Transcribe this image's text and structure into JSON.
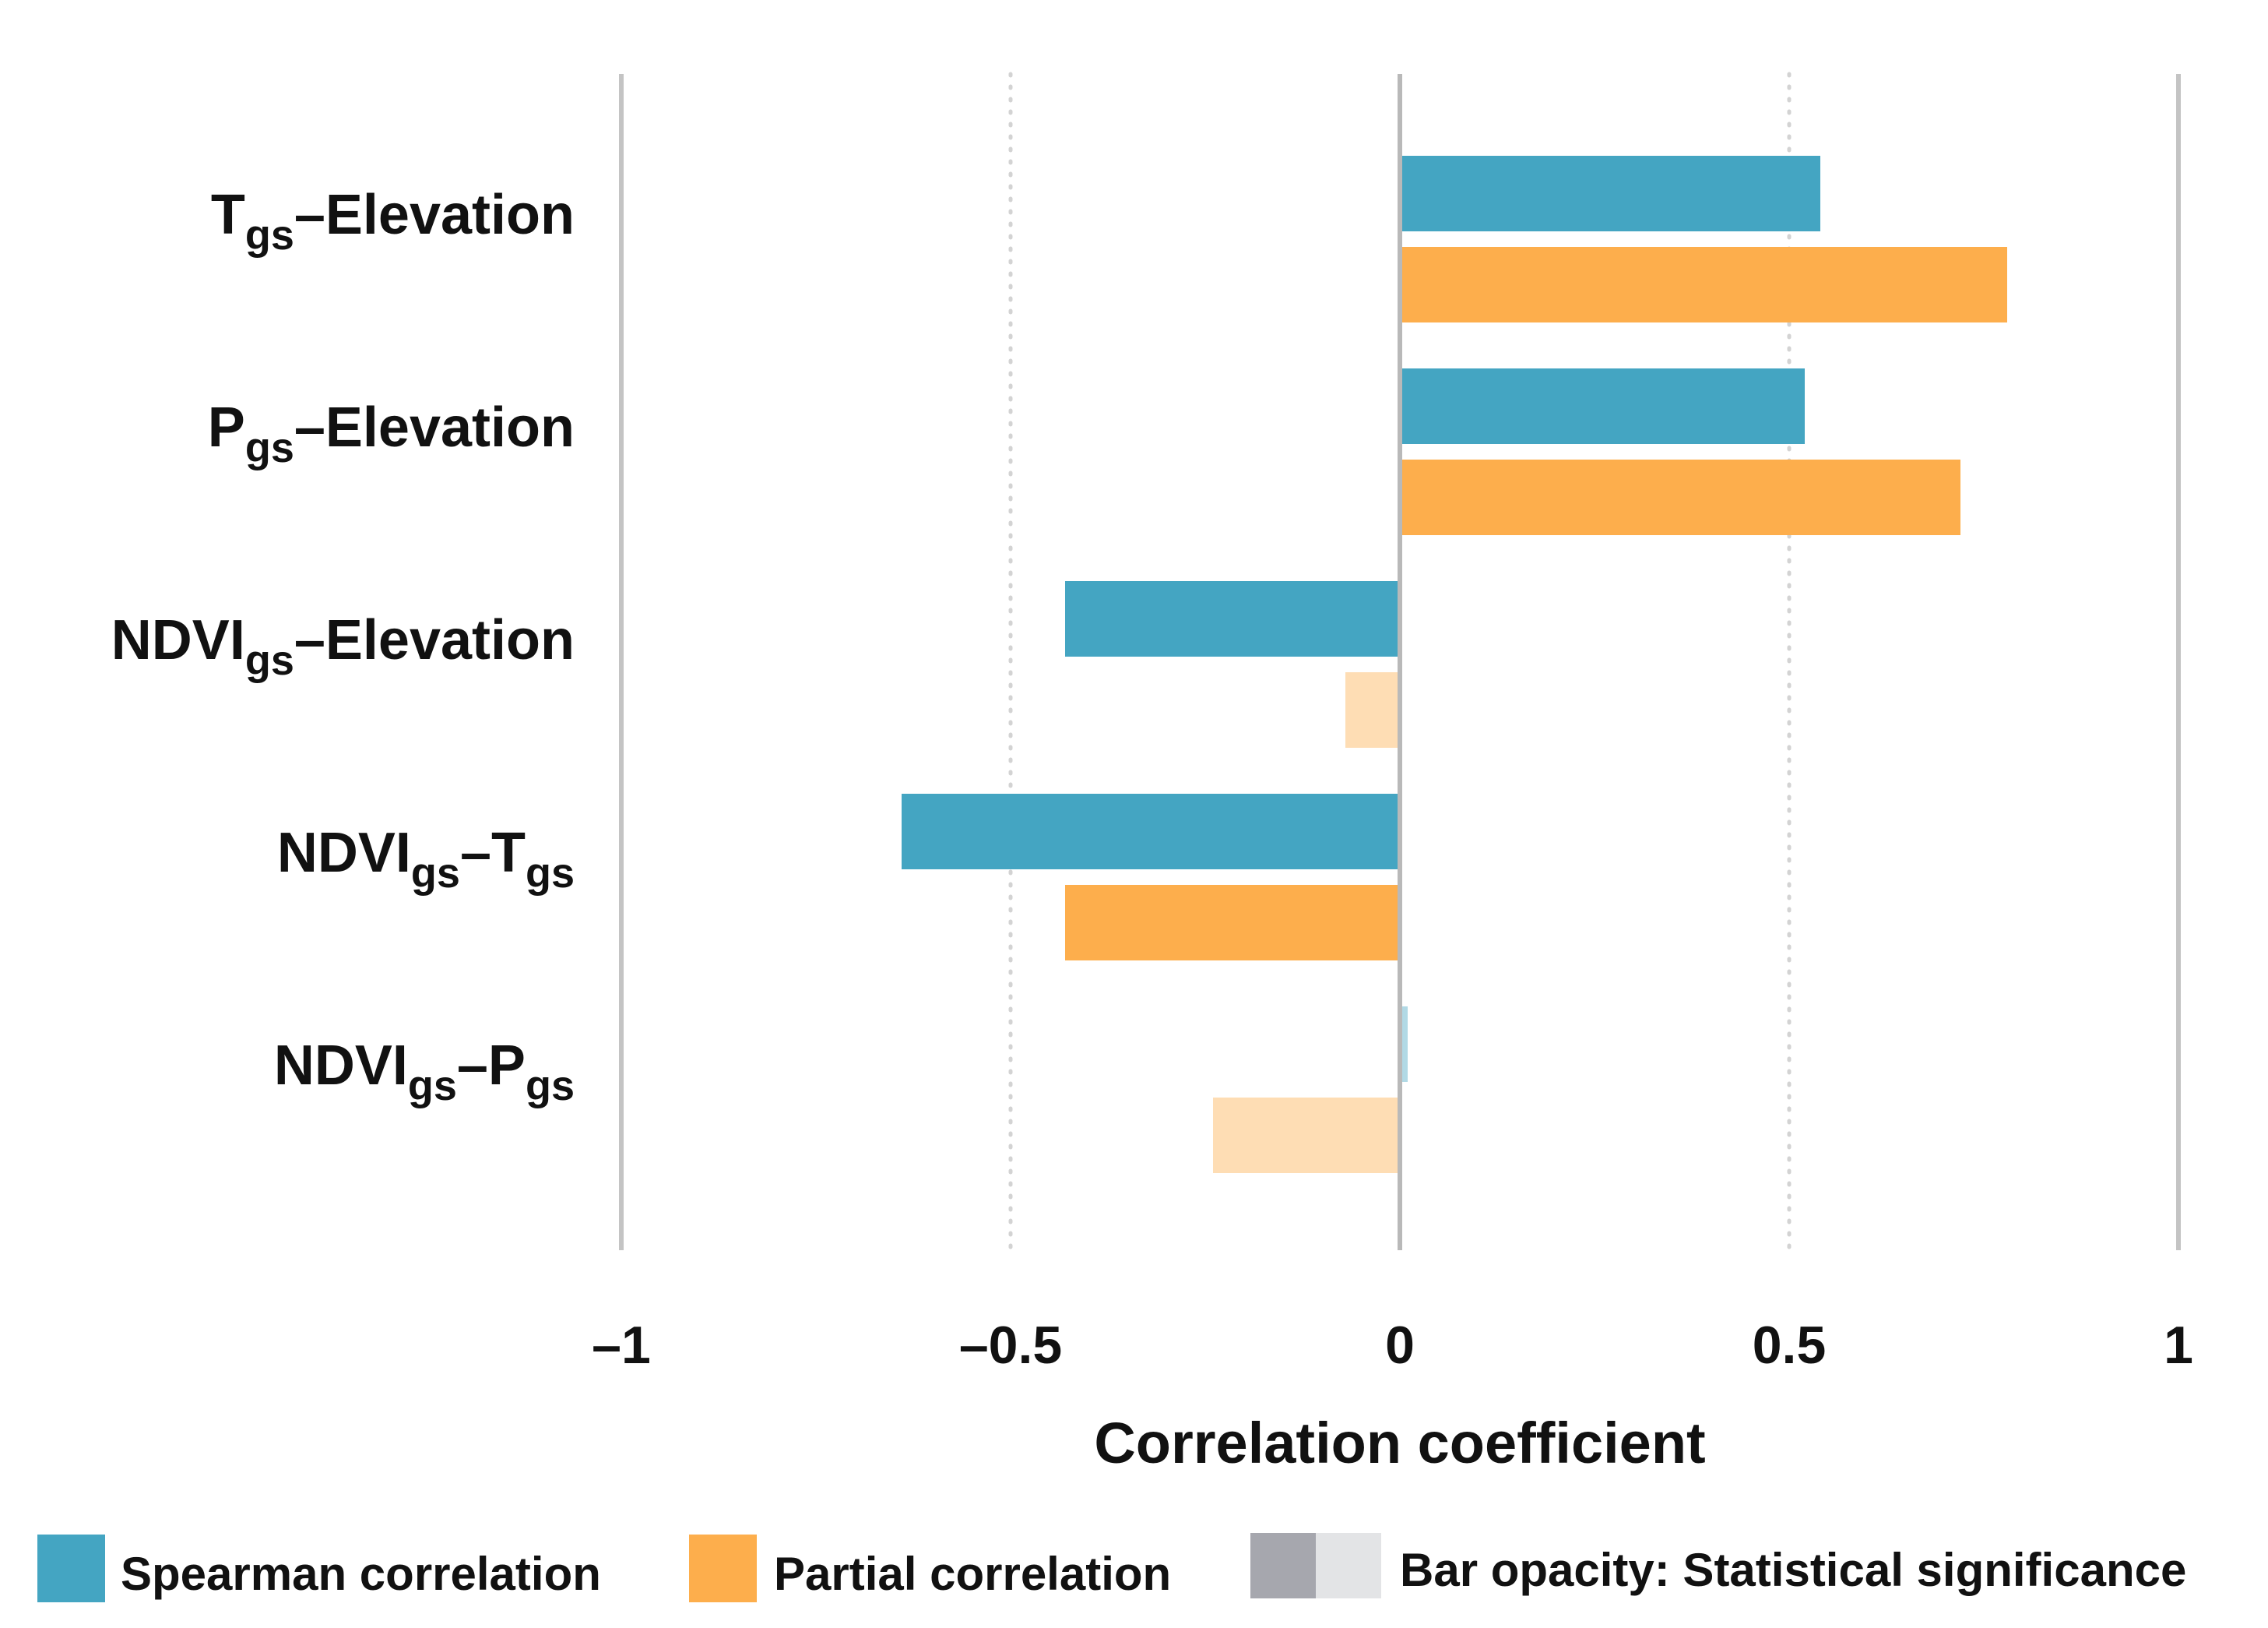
{
  "chart_data": {
    "type": "bar",
    "orientation": "horizontal",
    "categories": [
      "Tgs–Elevation",
      "Pgs–Elevation",
      "NDVIgs–Elevation",
      "NDVIgs–Tgs",
      "NDVIgs–Pgs"
    ],
    "category_label_parts": [
      [
        {
          "t": "T",
          "sub": false
        },
        {
          "t": "gs",
          "sub": true
        },
        {
          "t": "–Elevation",
          "sub": false
        }
      ],
      [
        {
          "t": "P",
          "sub": false
        },
        {
          "t": "gs",
          "sub": true
        },
        {
          "t": "–Elevation",
          "sub": false
        }
      ],
      [
        {
          "t": "NDVI",
          "sub": false
        },
        {
          "t": "gs",
          "sub": true
        },
        {
          "t": "–Elevation",
          "sub": false
        }
      ],
      [
        {
          "t": "NDVI",
          "sub": false
        },
        {
          "t": "gs",
          "sub": true
        },
        {
          "t": "–T",
          "sub": false
        },
        {
          "t": "gs",
          "sub": true
        }
      ],
      [
        {
          "t": "NDVI",
          "sub": false
        },
        {
          "t": "gs",
          "sub": true
        },
        {
          "t": "–P",
          "sub": false
        },
        {
          "t": "gs",
          "sub": true
        }
      ]
    ],
    "series": [
      {
        "name": "Spearman correlation",
        "color": "#44a5c2",
        "values": [
          0.54,
          0.52,
          -0.43,
          -0.64,
          0.01
        ],
        "significant": [
          true,
          true,
          true,
          true,
          false
        ]
      },
      {
        "name": "Partial correlation",
        "color": "#fdae4c",
        "values": [
          0.78,
          0.72,
          -0.07,
          -0.43,
          -0.24
        ],
        "significant": [
          true,
          true,
          false,
          true,
          false
        ]
      }
    ],
    "xlabel": "Correlation coefficient",
    "xlim": [
      -1,
      1
    ],
    "xticks": [
      -1,
      -0.5,
      0,
      0.5,
      1
    ],
    "xtick_labels": [
      "–1",
      "–0.5",
      "0",
      "0.5",
      "1"
    ],
    "legend": {
      "position": "bottom",
      "significance_label": "Bar opacity: Statistical significance",
      "significance_colors": [
        "#a6a7ae",
        "#e3e4e6"
      ]
    }
  }
}
